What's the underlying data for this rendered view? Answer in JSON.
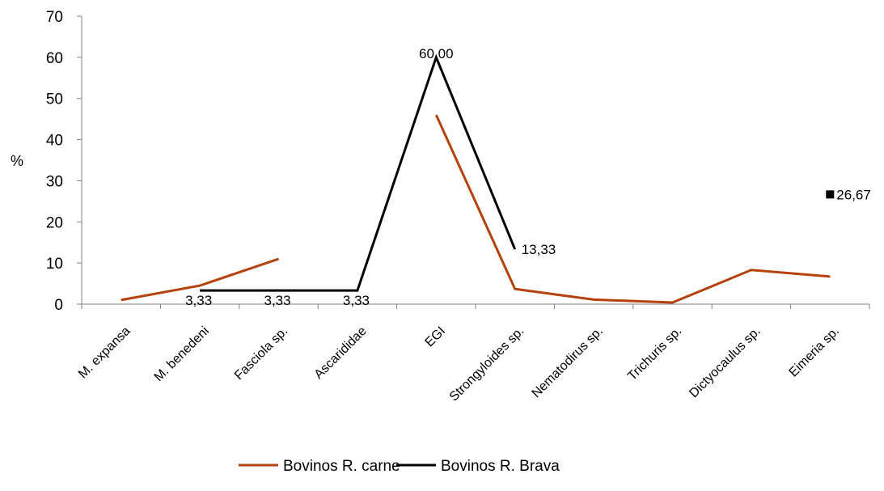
{
  "chart_data": {
    "type": "line",
    "title": "",
    "xlabel": "",
    "ylabel": "%",
    "ylim": [
      0,
      70
    ],
    "yticks": [
      0,
      10,
      20,
      30,
      40,
      50,
      60,
      70
    ],
    "grid": false,
    "legend_position": "bottom",
    "categories": [
      "M. expansa",
      "M. benedeni",
      "Fasciola sp.",
      "Ascarididae",
      "EGI",
      "Strongyloides sp.",
      "Nematodirus sp.",
      "Trichuris sp.",
      "Dictyocaulus sp.",
      "Eimeria sp."
    ],
    "series": [
      {
        "name": "Bovinos R. carne",
        "color": "#B5420D",
        "values": [
          1.0,
          4.5,
          11.0,
          null,
          46.0,
          3.7,
          1.1,
          0.4,
          8.3,
          6.7
        ],
        "labels": [
          null,
          null,
          null,
          null,
          null,
          null,
          null,
          null,
          null,
          null
        ]
      },
      {
        "name": "Bovinos R. Brava",
        "color": "#000000",
        "values": [
          null,
          3.33,
          3.33,
          3.33,
          60.0,
          13.33,
          null,
          null,
          null,
          26.67
        ],
        "labels": [
          null,
          "3,33",
          "3,33",
          "3,33",
          "60,00",
          "13,33",
          null,
          null,
          null,
          "26,67"
        ]
      }
    ]
  }
}
